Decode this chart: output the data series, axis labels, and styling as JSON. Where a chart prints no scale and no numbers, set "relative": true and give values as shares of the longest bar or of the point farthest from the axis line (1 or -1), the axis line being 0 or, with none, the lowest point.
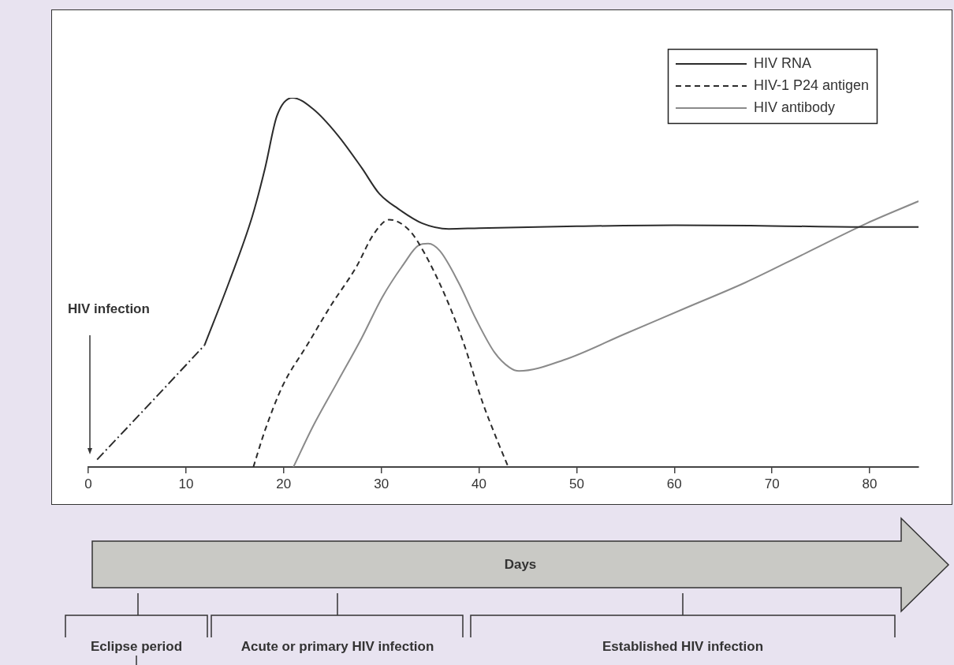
{
  "chart_data": {
    "type": "line",
    "relative": true,
    "xlabel": "Days",
    "xlim": [
      0,
      85
    ],
    "xticks": [
      0,
      10,
      20,
      30,
      40,
      50,
      60,
      70,
      80
    ],
    "grid": false,
    "legend": "top right",
    "marker": "none",
    "annotations": [
      "HIV infection",
      "Eclipse period",
      "Acute or primary HIV infection",
      "Established HIV infection"
    ],
    "series": [
      {
        "color": "#2b2b2b",
        "line_style": "dashdot",
        "x": [
          0.9,
          6.6,
          11.9
        ],
        "values": [
          0.02,
          0.18,
          0.33
        ]
      },
      {
        "name": "HIV RNA",
        "color": "#2b2b2b",
        "line_style": "solid",
        "x": [
          11.9,
          14.4,
          16.8,
          18.1,
          19.3,
          20.9,
          23.0,
          25.5,
          28.0,
          29.8,
          31.7,
          34.2,
          36.9,
          40,
          50,
          60,
          70,
          80,
          85
        ],
        "values": [
          0.33,
          0.5,
          0.68,
          0.81,
          0.95,
          1,
          0.97,
          0.9,
          0.81,
          0.74,
          0.7,
          0.66,
          0.645,
          0.647,
          0.652,
          0.655,
          0.653,
          0.65,
          0.65
        ]
      },
      {
        "name": "HIV-1 P24 antigen",
        "color": "#2b2b2b",
        "line_style": "dashed",
        "x": [
          16.9,
          18.1,
          19.9,
          22.4,
          24.9,
          27.4,
          29.2,
          30.8,
          32.9,
          34.4,
          36.6,
          38.5,
          40.3,
          41.9,
          43.0
        ],
        "values": [
          0,
          0.1,
          0.22,
          0.33,
          0.44,
          0.54,
          0.63,
          0.67,
          0.64,
          0.58,
          0.46,
          0.33,
          0.18,
          0.07,
          0
        ]
      },
      {
        "name": "HIV antibody",
        "color": "#8a8a8a",
        "line_style": "solid",
        "x": [
          21.0,
          23.0,
          25.5,
          28.0,
          30.1,
          32.3,
          33.8,
          34.8,
          36.0,
          37.9,
          39.7,
          41.6,
          43.1,
          44.1,
          48.7,
          54.9,
          61.1,
          67.3,
          73.5,
          79.7,
          85
        ],
        "values": [
          0,
          0.11,
          0.23,
          0.35,
          0.46,
          0.55,
          0.6,
          0.605,
          0.585,
          0.5,
          0.4,
          0.31,
          0.27,
          0.26,
          0.29,
          0.36,
          0.43,
          0.5,
          0.58,
          0.66,
          0.72
        ]
      }
    ]
  }
}
